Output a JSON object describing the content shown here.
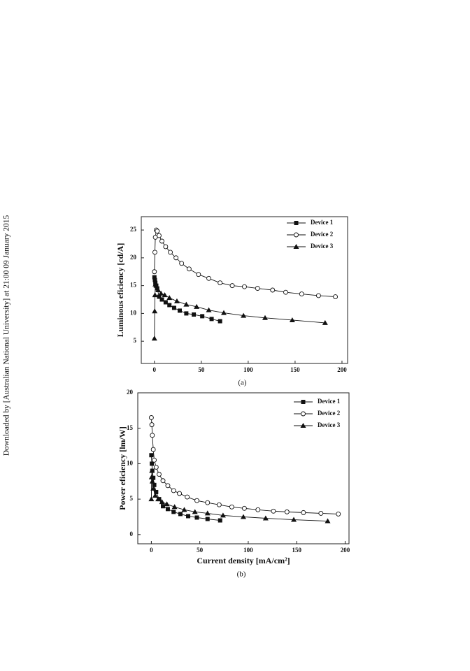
{
  "side_note": "Downloaded by [Australian National University] at 21:00 09 January 2015",
  "chart_data": [
    {
      "type": "line",
      "caption": "(a)",
      "ylabel": "Luminous eficiency [cd/A]",
      "xlim": [
        -14,
        206
      ],
      "xticks": [
        0,
        50,
        100,
        150,
        200
      ],
      "ylim": [
        1,
        27.4
      ],
      "yticks": [
        5,
        10,
        15,
        20,
        25
      ],
      "series": [
        {
          "name": "Device 1",
          "color": "#111111",
          "marker": "square",
          "x": [
            0,
            0.5,
            1,
            2,
            3,
            5,
            8,
            12,
            16,
            21,
            27,
            34,
            42,
            51,
            61,
            70
          ],
          "values": [
            16.5,
            16,
            15.5,
            15,
            14.5,
            13,
            12.5,
            12,
            11.5,
            11,
            10.5,
            10,
            9.8,
            9.5,
            9,
            8.6
          ]
        },
        {
          "name": "Device 2",
          "color": "#111111",
          "marker": "circle",
          "x": [
            0,
            0.5,
            1,
            2,
            3,
            5,
            8,
            12,
            17,
            23,
            29,
            37,
            47,
            58,
            70,
            83,
            96,
            110,
            126,
            140,
            157,
            175,
            193
          ],
          "values": [
            17.5,
            21,
            23.7,
            25,
            24.8,
            24,
            23,
            22,
            21,
            20,
            19,
            18,
            17,
            16.3,
            15.5,
            15,
            14.8,
            14.5,
            14.2,
            13.8,
            13.5,
            13.2,
            13
          ]
        },
        {
          "name": "Device 3",
          "color": "#111111",
          "marker": "triangle",
          "x": [
            0,
            0.3,
            0.6,
            1,
            2,
            4,
            7,
            11,
            16,
            24,
            34,
            45,
            58,
            74,
            95,
            118,
            147,
            182
          ],
          "values": [
            5.5,
            10.4,
            13.3,
            15.2,
            15,
            14.2,
            13.6,
            13.3,
            12.8,
            12.2,
            11.6,
            11.2,
            10.6,
            10.1,
            9.6,
            9.2,
            8.8,
            8.3
          ]
        }
      ]
    },
    {
      "type": "line",
      "caption": "(b)",
      "ylabel": "Power eficiency [lm/W]",
      "xlabel": "Current density [mA/cm²]",
      "xlim": [
        -14,
        204
      ],
      "xticks": [
        0,
        50,
        100,
        150,
        200
      ],
      "ylim": [
        -1.3,
        20
      ],
      "yticks": [
        0,
        5,
        10,
        15,
        20
      ],
      "series": [
        {
          "name": "Device 1",
          "color": "#111111",
          "marker": "square",
          "x": [
            0,
            0.5,
            1,
            2,
            3,
            5,
            8,
            12,
            17,
            23,
            30,
            38,
            47,
            58,
            71
          ],
          "values": [
            11.2,
            10,
            9,
            8,
            7,
            6,
            5,
            4,
            3.6,
            3.2,
            2.9,
            2.6,
            2.4,
            2.2,
            2
          ]
        },
        {
          "name": "Device 2",
          "color": "#111111",
          "marker": "circle",
          "x": [
            0,
            0.5,
            1,
            2,
            3,
            5,
            8,
            12,
            17,
            23,
            29,
            37,
            47,
            58,
            70,
            83,
            96,
            110,
            126,
            140,
            157,
            175,
            193
          ],
          "values": [
            16.5,
            15.5,
            14,
            12,
            10.5,
            9.5,
            8.5,
            7.6,
            6.9,
            6.2,
            5.8,
            5.3,
            4.8,
            4.5,
            4.2,
            3.9,
            3.7,
            3.5,
            3.3,
            3.2,
            3.1,
            3,
            2.9
          ]
        },
        {
          "name": "Device 3",
          "color": "#111111",
          "marker": "triangle",
          "x": [
            0,
            0.3,
            0.6,
            1,
            2,
            4,
            7,
            11,
            16,
            24,
            34,
            45,
            58,
            74,
            95,
            118,
            147,
            182
          ],
          "values": [
            5,
            8.1,
            9,
            7.5,
            6.5,
            5.5,
            5,
            4.6,
            4.3,
            3.9,
            3.5,
            3.2,
            3,
            2.7,
            2.5,
            2.3,
            2.1,
            1.9
          ]
        }
      ]
    }
  ]
}
